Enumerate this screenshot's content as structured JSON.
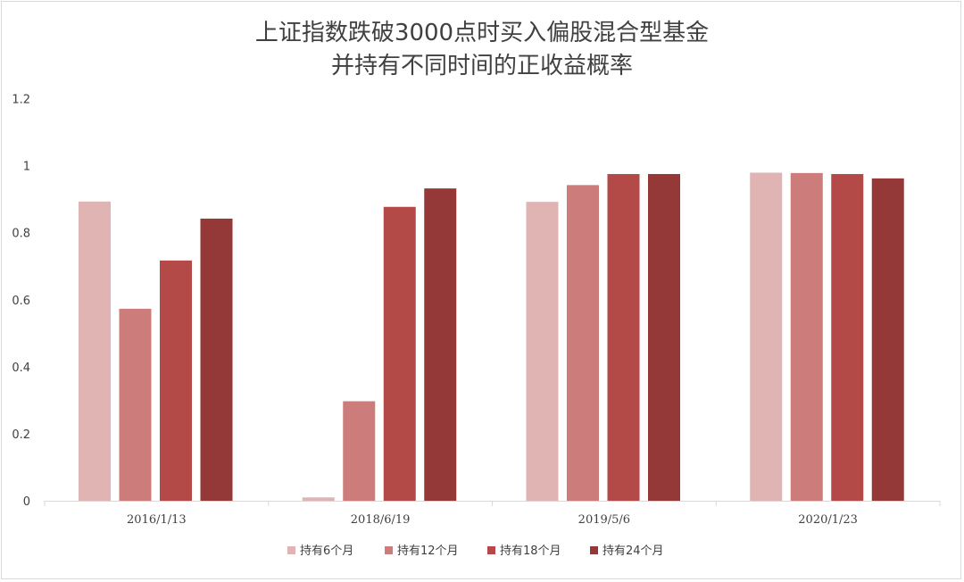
{
  "chart_data": {
    "type": "bar",
    "title": "上证指数跌破3000点时买入偏股混合型基金",
    "subtitle": "并持有不同时间的正收益概率",
    "categories": [
      "2016/1/13",
      "2018/6/19",
      "2019/5/6",
      "2020/1/23"
    ],
    "series": [
      {
        "name": "持有6个月",
        "color": "#e0b4b3",
        "values": [
          0.893,
          0.01,
          0.892,
          0.979
        ]
      },
      {
        "name": "持有12个月",
        "color": "#cb7c7b",
        "values": [
          0.573,
          0.297,
          0.942,
          0.978
        ]
      },
      {
        "name": "持有18个月",
        "color": "#b34a48",
        "values": [
          0.717,
          0.877,
          0.975,
          0.975
        ]
      },
      {
        "name": "持有24个月",
        "color": "#953838",
        "values": [
          0.842,
          0.932,
          0.975,
          0.962
        ]
      }
    ],
    "ylim": [
      0,
      1.2
    ],
    "yticks": [
      "0",
      "0.2",
      "0.4",
      "0.6",
      "0.8",
      "1",
      "1.2"
    ],
    "grid": false,
    "legend_position": "bottom"
  }
}
